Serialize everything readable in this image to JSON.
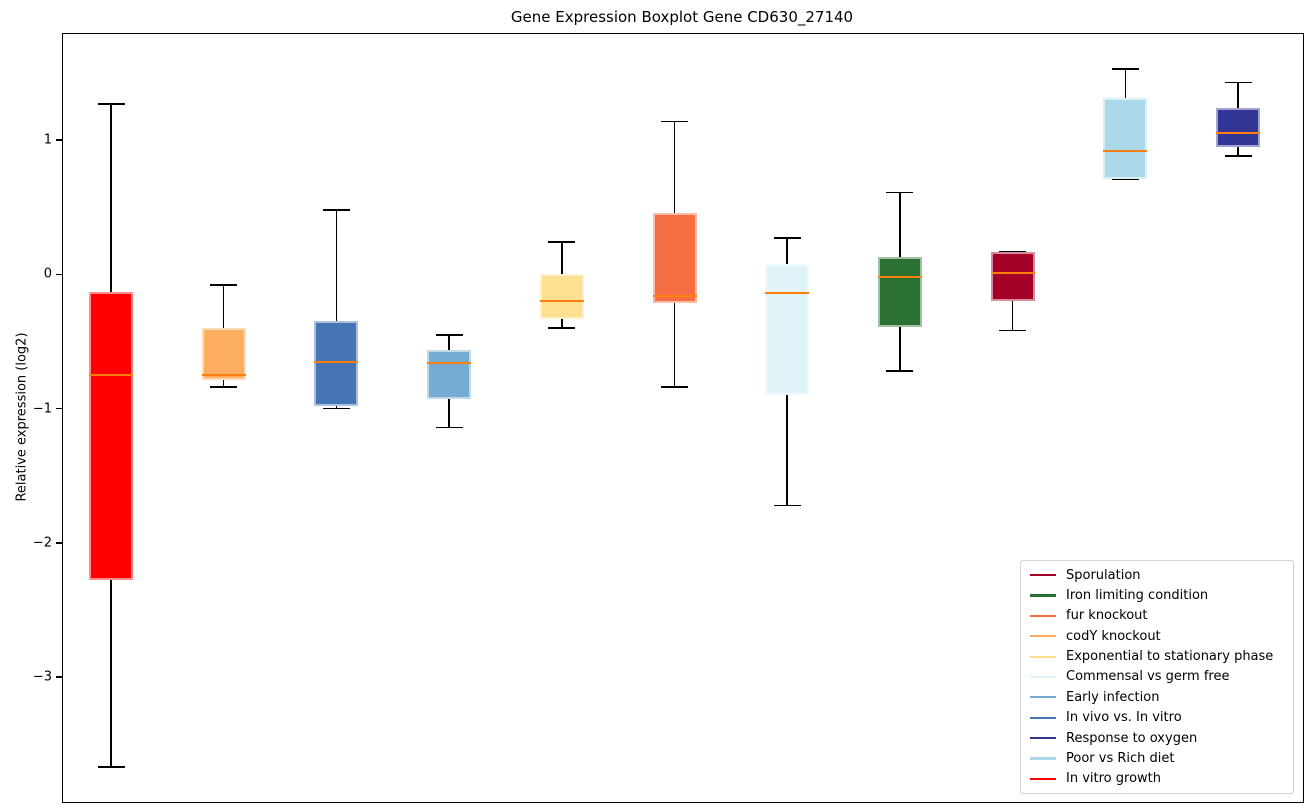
{
  "figure": {
    "title": "Gene Expression Boxplot Gene CD630_27140",
    "ylabel": "Relative expression (log2)"
  },
  "chart_data": {
    "type": "boxplot",
    "title": "Gene Expression Boxplot Gene CD630_27140",
    "xlabel": "",
    "ylabel": "Relative expression (log2)",
    "ylim": [
      -3.93,
      1.79
    ],
    "yticks": [
      1,
      0,
      -1,
      -2,
      -3
    ],
    "grid": false,
    "legend_position": "lower right",
    "median_color": "#ff7f0e",
    "whisker_color": "#000000",
    "series": [
      {
        "name": "In vitro growth",
        "color": "#ff0000",
        "whislo": -3.67,
        "q1": -2.28,
        "med": -0.75,
        "q3": -0.13,
        "whishi": 1.27
      },
      {
        "name": "codY knockout",
        "color": "#fdae61",
        "whislo": -0.84,
        "q1": -0.79,
        "med": -0.75,
        "q3": -0.4,
        "whishi": -0.08
      },
      {
        "name": "In vivo vs. In vitro",
        "color": "#4575b4",
        "whislo": -1.0,
        "q1": -0.98,
        "med": -0.65,
        "q3": -0.35,
        "whishi": 0.48
      },
      {
        "name": "Early infection",
        "color": "#74add1",
        "whislo": -1.14,
        "q1": -0.93,
        "med": -0.66,
        "q3": -0.56,
        "whishi": -0.45
      },
      {
        "name": "Exponential to stationary phase",
        "color": "#fee090",
        "whislo": -0.4,
        "q1": -0.33,
        "med": -0.2,
        "q3": 0.0,
        "whishi": 0.24
      },
      {
        "name": "fur knockout",
        "color": "#f46d43",
        "whislo": -0.84,
        "q1": -0.21,
        "med": -0.16,
        "q3": 0.46,
        "whishi": 1.14
      },
      {
        "name": "Commensal vs germ free",
        "color": "#e0f3f8",
        "whislo": -1.72,
        "q1": -0.9,
        "med": -0.14,
        "q3": 0.08,
        "whishi": 0.27
      },
      {
        "name": "Iron limiting condition",
        "color": "#2b7232",
        "whislo": -0.72,
        "q1": -0.39,
        "med": -0.02,
        "q3": 0.13,
        "whishi": 0.61
      },
      {
        "name": "Sporulation",
        "color": "#a50026",
        "whislo": -0.42,
        "q1": -0.2,
        "med": 0.01,
        "q3": 0.17,
        "whishi": 0.17
      },
      {
        "name": "Poor vs Rich diet",
        "color": "#abd9e9",
        "whislo": 0.71,
        "q1": 0.71,
        "med": 0.92,
        "q3": 1.31,
        "whishi": 1.53
      },
      {
        "name": "Response to oxygen",
        "color": "#313695",
        "whislo": 0.88,
        "q1": 0.95,
        "med": 1.05,
        "q3": 1.24,
        "whishi": 1.43
      }
    ],
    "legend": [
      "Sporulation",
      "Iron limiting condition",
      "fur knockout",
      "codY knockout",
      "Exponential to stationary phase",
      "Commensal vs germ free",
      "Early infection",
      "In vivo vs. In vitro",
      "Response to oxygen",
      "Poor vs Rich diet",
      "In vitro growth"
    ]
  }
}
